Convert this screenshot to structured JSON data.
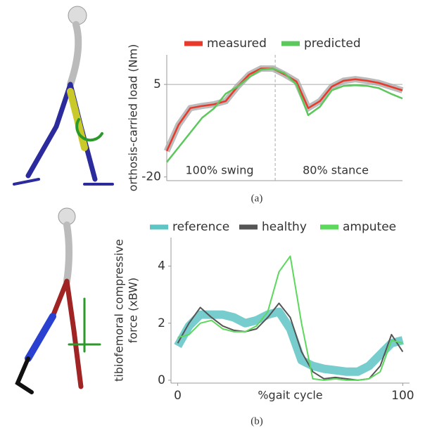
{
  "chart_data": [
    {
      "type": "line",
      "caption": "(a)",
      "y_label": [
        "orthosis-carried load (Nm)"
      ],
      "annotations": [
        "100% swing",
        "80% stance"
      ],
      "vline": 46,
      "hline": 5,
      "x": [
        0,
        5,
        10,
        15,
        20,
        25,
        30,
        35,
        40,
        45,
        50,
        55,
        60,
        65,
        70,
        75,
        80,
        85,
        90,
        95,
        100
      ],
      "xlim": [
        0,
        100
      ],
      "ylim": [
        -21,
        13
      ],
      "yticks": [
        -20,
        5
      ],
      "series": [
        {
          "name": "measured",
          "color": "#e8392b",
          "values": [
            -13,
            -5.9,
            -1.4,
            -0.8,
            -0.4,
            0.5,
            4.4,
            7.7,
            9.3,
            9.3,
            7.7,
            5.8,
            -1.4,
            0.5,
            4.4,
            6,
            6.4,
            6,
            5.4,
            4.4,
            3.4
          ]
        },
        {
          "name": "predicted",
          "color": "#5cc85c",
          "values": [
            -16,
            -12,
            -8,
            -4,
            -1.5,
            2.5,
            4.4,
            7,
            9,
            9.3,
            8,
            5,
            -3.3,
            -1,
            3.4,
            4.6,
            4.8,
            4.6,
            4,
            2.5,
            1.2
          ]
        }
      ]
    },
    {
      "type": "line",
      "caption": "(b)",
      "y_label": [
        "tibiofemoral compressive",
        "force (xBW)"
      ],
      "x_label": "%gait cycle",
      "x": [
        0,
        5,
        10,
        15,
        20,
        25,
        30,
        35,
        40,
        45,
        50,
        55,
        60,
        65,
        70,
        75,
        80,
        85,
        90,
        95,
        100
      ],
      "xlim": [
        -3,
        103
      ],
      "xticks": [
        0,
        100
      ],
      "ylim": [
        -0.1,
        5
      ],
      "yticks": [
        0,
        2,
        4
      ],
      "series": [
        {
          "name": "reference",
          "color": "#5fc4c4",
          "width": 12,
          "values": [
            1.2,
            1.9,
            2.3,
            2.3,
            2.3,
            2.2,
            2.0,
            2.1,
            2.3,
            2.4,
            1.8,
            0.7,
            0.5,
            0.4,
            0.35,
            0.3,
            0.3,
            0.5,
            0.9,
            1.3,
            1.4
          ]
        },
        {
          "name": "healthy",
          "color": "#555555",
          "width": 2,
          "values": [
            1.3,
            2.0,
            2.55,
            2.2,
            1.9,
            1.75,
            1.7,
            1.8,
            2.2,
            2.7,
            2.2,
            1.0,
            0.3,
            0.05,
            0.1,
            0.05,
            0.0,
            0.05,
            0.5,
            1.6,
            1.0
          ]
        },
        {
          "name": "amputee",
          "color": "#5cd85c",
          "width": 2,
          "values": [
            1.5,
            1.6,
            2.0,
            2.1,
            1.8,
            1.7,
            1.7,
            1.9,
            2.4,
            3.8,
            4.35,
            2.0,
            0.05,
            0.0,
            0.05,
            0.0,
            0.0,
            0.05,
            0.3,
            1.4,
            1.3
          ]
        }
      ]
    }
  ]
}
